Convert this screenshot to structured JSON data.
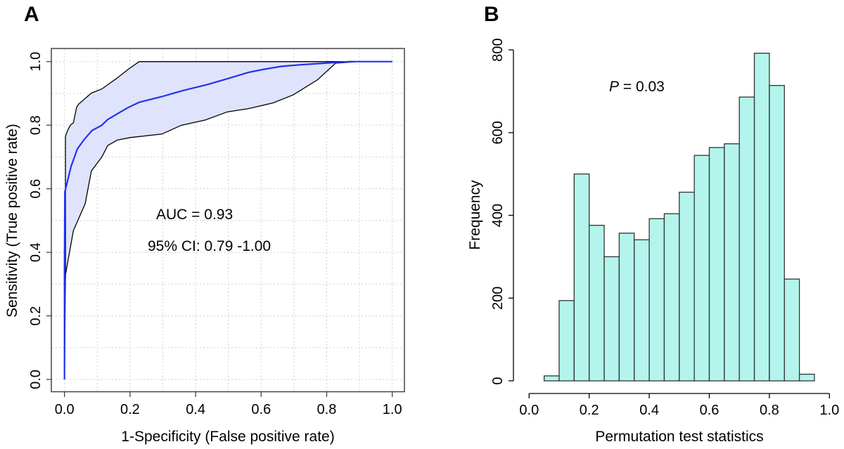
{
  "chart_data": [
    {
      "panel": "A",
      "type": "line",
      "title": "",
      "xlabel": "1-Specificity (False positive rate)",
      "ylabel": "Sensitivity (True positive rate)",
      "xlim": [
        0,
        1
      ],
      "ylim": [
        0,
        1
      ],
      "xticks": [
        "0.0",
        "0.2",
        "0.4",
        "0.6",
        "0.8",
        "1.0"
      ],
      "yticks": [
        "0.0",
        "0.2",
        "0.4",
        "0.6",
        "0.8",
        "1.0"
      ],
      "grid": true,
      "annotations": [
        "AUC = 0.93",
        "95% CI: 0.79 -1.00"
      ],
      "colors": {
        "roc": "#2233ee",
        "ci_fill": "#dfe3fb",
        "ci_line": "#000000"
      },
      "series": [
        {
          "name": "ROC",
          "x": [
            0,
            0,
            0.001,
            0.02,
            0.039,
            0.06,
            0.084,
            0.114,
            0.132,
            0.16,
            0.193,
            0.228,
            0.297,
            0.361,
            0.433,
            0.497,
            0.561,
            0.604,
            0.661,
            0.72,
            0.819,
            0.87,
            1.0
          ],
          "y": [
            0,
            0.35,
            0.59,
            0.67,
            0.725,
            0.755,
            0.783,
            0.8,
            0.818,
            0.835,
            0.855,
            0.872,
            0.89,
            0.909,
            0.927,
            0.946,
            0.966,
            0.975,
            0.985,
            0.99,
            0.997,
            1.0,
            1.0
          ]
        },
        {
          "name": "CI upper",
          "x": [
            0,
            0.003,
            0.003,
            0.01,
            0.019,
            0.027,
            0.037,
            0.043,
            0.082,
            0.114,
            0.16,
            0.196,
            0.228,
            1.0
          ],
          "y": [
            0,
            0.35,
            0.765,
            0.785,
            0.802,
            0.807,
            0.856,
            0.866,
            0.901,
            0.914,
            0.948,
            0.977,
            1.0,
            1.0
          ]
        },
        {
          "name": "CI lower",
          "x": [
            0,
            0,
            0.003,
            0.01,
            0.027,
            0.063,
            0.082,
            0.114,
            0.132,
            0.161,
            0.2,
            0.297,
            0.357,
            0.429,
            0.497,
            0.561,
            0.636,
            0.697,
            0.772,
            0.827,
            0.891,
            1.0
          ],
          "y": [
            0,
            0.22,
            0.33,
            0.37,
            0.468,
            0.553,
            0.656,
            0.7,
            0.736,
            0.753,
            0.761,
            0.772,
            0.8,
            0.816,
            0.842,
            0.852,
            0.87,
            0.895,
            0.943,
            0.995,
            1.0,
            1.0
          ]
        }
      ]
    },
    {
      "panel": "B",
      "type": "bar",
      "title": "",
      "xlabel": "Permutation test statistics",
      "ylabel": "Frequency",
      "xlim": [
        0,
        1
      ],
      "ylim": [
        0,
        800
      ],
      "xticks": [
        "0.0",
        "0.2",
        "0.4",
        "0.6",
        "0.8",
        "1.0"
      ],
      "yticks": [
        "0",
        "200",
        "400",
        "600",
        "800"
      ],
      "grid": false,
      "annotations": [
        {
          "italic": "P",
          "rest": " = 0.03"
        }
      ],
      "colors": {
        "bar_fill": "#b3f5ec",
        "bar_stroke": "#333333"
      },
      "bin_width": 0.05,
      "bin_starts": [
        0.05,
        0.1,
        0.15,
        0.2,
        0.25,
        0.3,
        0.35,
        0.4,
        0.45,
        0.5,
        0.55,
        0.6,
        0.65,
        0.7,
        0.75,
        0.8,
        0.85,
        0.9
      ],
      "values": [
        12,
        194,
        500,
        376,
        300,
        357,
        341,
        392,
        404,
        456,
        545,
        564,
        573,
        686,
        792,
        714,
        246,
        16
      ]
    }
  ],
  "panels": {
    "a": {
      "letter": "A"
    },
    "b": {
      "letter": "B"
    }
  }
}
